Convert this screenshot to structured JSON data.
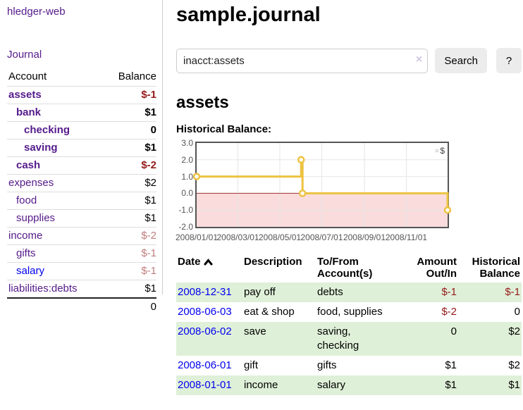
{
  "brand": "hledger-web",
  "nav": {
    "journal": "Journal"
  },
  "sidebar": {
    "col_account": "Account",
    "col_balance": "Balance",
    "accounts": [
      {
        "name": "assets",
        "balance": "$-1",
        "level": 1,
        "bold": true,
        "neg": "strong",
        "visited": true
      },
      {
        "name": "bank",
        "balance": "$1",
        "level": 2,
        "bold": true,
        "neg": "none",
        "visited": true
      },
      {
        "name": "checking",
        "balance": "0",
        "level": 3,
        "bold": true,
        "neg": "none",
        "visited": true
      },
      {
        "name": "saving",
        "balance": "$1",
        "level": 3,
        "bold": true,
        "neg": "none",
        "visited": true
      },
      {
        "name": "cash",
        "balance": "$-2",
        "level": 2,
        "bold": true,
        "neg": "strong",
        "visited": true
      },
      {
        "name": "expenses",
        "balance": "$2",
        "level": 1,
        "bold": false,
        "neg": "none",
        "visited": true
      },
      {
        "name": "food",
        "balance": "$1",
        "level": 2,
        "bold": false,
        "neg": "none",
        "visited": true
      },
      {
        "name": "supplies",
        "balance": "$1",
        "level": 2,
        "bold": false,
        "neg": "none",
        "visited": true
      },
      {
        "name": "income",
        "balance": "$-2",
        "level": 1,
        "bold": false,
        "neg": "pale",
        "visited": true
      },
      {
        "name": "gifts",
        "balance": "$-1",
        "level": 2,
        "bold": false,
        "neg": "pale",
        "visited": true
      },
      {
        "name": "salary",
        "balance": "$-1",
        "level": 2,
        "bold": false,
        "neg": "pale",
        "visited": false
      },
      {
        "name": "liabilities:debts",
        "balance": "$1",
        "level": 1,
        "bold": false,
        "neg": "none",
        "visited": true
      }
    ],
    "total": "0"
  },
  "page": {
    "title": "sample.journal",
    "account_heading": "assets",
    "chart_title": "Historical Balance:"
  },
  "search": {
    "value": "inacct:assets",
    "clear": "×",
    "button": "Search",
    "help": "?"
  },
  "chart_data": {
    "type": "line",
    "style": "step",
    "title": "Historical Balance",
    "series": [
      {
        "name": "$",
        "color": "#edc240",
        "points": [
          [
            "2008-01-01",
            1
          ],
          [
            "2008-06-01",
            2
          ],
          [
            "2008-06-03",
            0
          ],
          [
            "2008-12-31",
            -1
          ]
        ]
      }
    ],
    "xlim": [
      "2008-01-01",
      "2008-12-31"
    ],
    "ylim": [
      -2,
      3
    ],
    "x_ticks": [
      "2008/01/01",
      "2008/03/01",
      "2008/05/01",
      "2008/07/01",
      "2008/09/01",
      "2008/11/01"
    ],
    "y_ticks": [
      3.0,
      2.0,
      1.0,
      0.0,
      -1.0,
      -2.0
    ],
    "legend": "$",
    "legend_position": "top-right",
    "grid": true,
    "negative_region_color": "#fadcdc",
    "zero_line_color": "#a03030",
    "grid_color": "#e6e6e6"
  },
  "transactions": {
    "headers": {
      "date": "Date",
      "description": "Description",
      "accounts": "To/From Account(s)",
      "amount": "Amount Out/In",
      "balance": "Historical Balance"
    },
    "rows": [
      {
        "date": "2008-12-31",
        "description": "pay off",
        "accounts": "debts",
        "amount": "$-1",
        "balance": "$-1",
        "amount_neg": true,
        "balance_neg": true,
        "shaded": true
      },
      {
        "date": "2008-06-03",
        "description": "eat & shop",
        "accounts": "food, supplies",
        "amount": "$-2",
        "balance": "0",
        "amount_neg": true,
        "balance_neg": false,
        "shaded": false
      },
      {
        "date": "2008-06-02",
        "description": "save",
        "accounts": "saving, checking",
        "amount": "0",
        "balance": "$2",
        "amount_neg": false,
        "balance_neg": false,
        "shaded": true
      },
      {
        "date": "2008-06-01",
        "description": "gift",
        "accounts": "gifts",
        "amount": "$1",
        "balance": "$2",
        "amount_neg": false,
        "balance_neg": false,
        "shaded": false
      },
      {
        "date": "2008-01-01",
        "description": "income",
        "accounts": "salary",
        "amount": "$1",
        "balance": "$1",
        "amount_neg": false,
        "balance_neg": false,
        "shaded": true
      }
    ]
  },
  "colors": {
    "link_purple": "#551a8b",
    "link_blue": "#0000ee",
    "negative_strong": "#941a1a",
    "negative_pale": "#c17d7d",
    "row_green": "#dff0d8",
    "chart_line": "#edc240"
  }
}
